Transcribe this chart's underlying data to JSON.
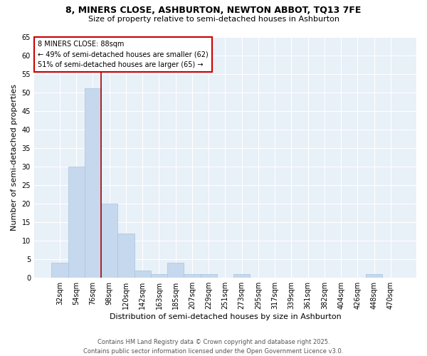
{
  "title1": "8, MINERS CLOSE, ASHBURTON, NEWTON ABBOT, TQ13 7FE",
  "title2": "Size of property relative to semi-detached houses in Ashburton",
  "xlabel": "Distribution of semi-detached houses by size in Ashburton",
  "ylabel": "Number of semi-detached properties",
  "categories": [
    "32sqm",
    "54sqm",
    "76sqm",
    "98sqm",
    "120sqm",
    "142sqm",
    "163sqm",
    "185sqm",
    "207sqm",
    "229sqm",
    "251sqm",
    "273sqm",
    "295sqm",
    "317sqm",
    "339sqm",
    "361sqm",
    "382sqm",
    "404sqm",
    "426sqm",
    "448sqm",
    "470sqm"
  ],
  "values": [
    4,
    30,
    51,
    20,
    12,
    2,
    1,
    4,
    1,
    1,
    0,
    1,
    0,
    0,
    0,
    0,
    0,
    0,
    0,
    1,
    0
  ],
  "bar_color": "#c5d8ed",
  "bar_edge_color": "#a8c4de",
  "vline_color": "#aa0000",
  "vline_x_index": 2.5,
  "annotation_title": "8 MINERS CLOSE: 88sqm",
  "annotation_line1": "← 49% of semi-detached houses are smaller (62)",
  "annotation_line2": "51% of semi-detached houses are larger (65) →",
  "annotation_box_edge_color": "#cc0000",
  "ylim": [
    0,
    65
  ],
  "yticks": [
    0,
    5,
    10,
    15,
    20,
    25,
    30,
    35,
    40,
    45,
    50,
    55,
    60,
    65
  ],
  "footer1": "Contains HM Land Registry data © Crown copyright and database right 2025.",
  "footer2": "Contains public sector information licensed under the Open Government Licence v3.0.",
  "bg_color": "#ffffff",
  "plot_bg_color": "#e8f0f8",
  "grid_color": "#ffffff",
  "title1_fontsize": 9,
  "title2_fontsize": 8,
  "xlabel_fontsize": 8,
  "ylabel_fontsize": 8,
  "tick_fontsize": 7,
  "footer_fontsize": 6,
  "ann_fontsize": 7
}
